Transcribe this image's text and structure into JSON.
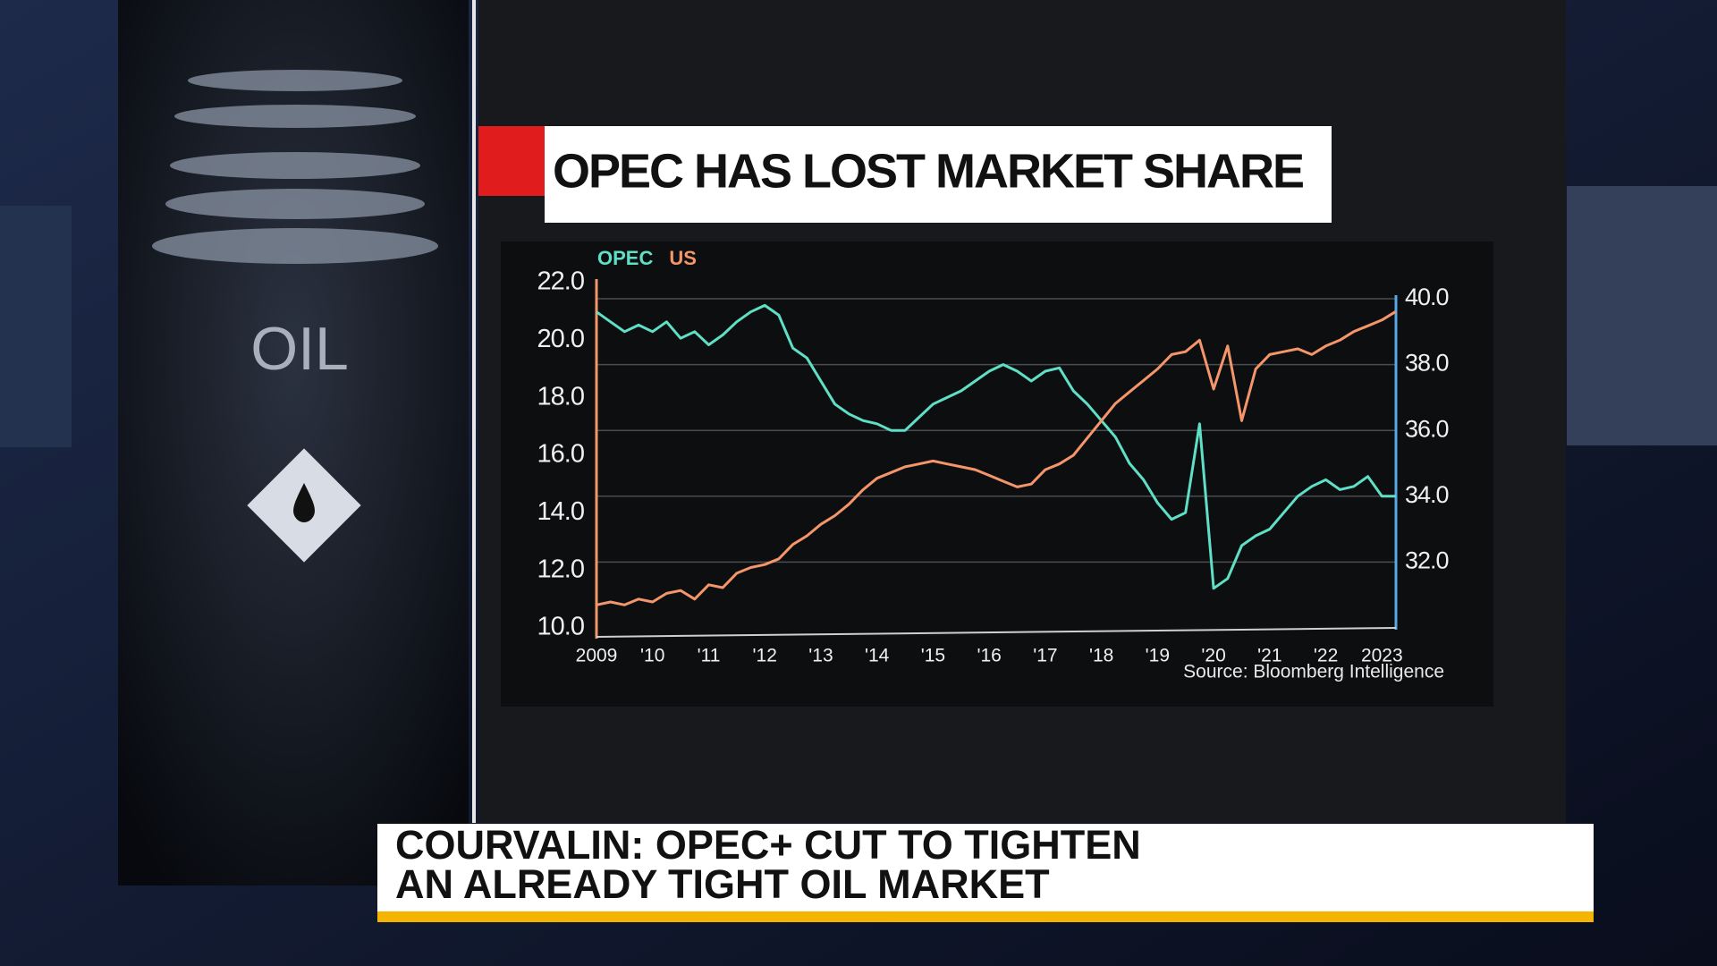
{
  "chart_data": {
    "type": "line",
    "title": "OPEC HAS LOST MARKET SHARE",
    "source": "Source: Bloomberg Intelligence",
    "x": [
      2009,
      2009.25,
      2009.5,
      2009.75,
      2010,
      2010.25,
      2010.5,
      2010.75,
      2011,
      2011.25,
      2011.5,
      2011.75,
      2012,
      2012.25,
      2012.5,
      2012.75,
      2013,
      2013.25,
      2013.5,
      2013.75,
      2014,
      2014.25,
      2014.5,
      2014.75,
      2015,
      2015.25,
      2015.5,
      2015.75,
      2016,
      2016.25,
      2016.5,
      2016.75,
      2017,
      2017.25,
      2017.5,
      2017.75,
      2018,
      2018.25,
      2018.5,
      2018.75,
      2019,
      2019.25,
      2019.5,
      2019.75,
      2020,
      2020.25,
      2020.5,
      2020.75,
      2021,
      2021.25,
      2021.5,
      2021.75,
      2022,
      2022.25,
      2022.5,
      2022.75,
      2023,
      2023.25
    ],
    "series": [
      {
        "name": "OPEC",
        "color": "#5fe0c6",
        "axis": "y2",
        "values": [
          39.6,
          39.3,
          39.0,
          39.2,
          39.0,
          39.3,
          38.8,
          39.0,
          38.6,
          38.9,
          39.3,
          39.6,
          39.8,
          39.5,
          38.5,
          38.2,
          37.5,
          36.8,
          36.5,
          36.3,
          36.2,
          36.0,
          36.0,
          36.4,
          36.8,
          37.0,
          37.2,
          37.5,
          37.8,
          38.0,
          37.8,
          37.5,
          37.8,
          37.9,
          37.2,
          36.8,
          36.3,
          35.8,
          35.0,
          34.5,
          33.8,
          33.3,
          33.5,
          36.2,
          31.2,
          31.5,
          32.5,
          32.8,
          33.0,
          33.5,
          34.0,
          34.3,
          34.5,
          34.2,
          34.3,
          34.6,
          34.0,
          34.0
        ]
      },
      {
        "name": "US",
        "color": "#f4956a",
        "axis": "y",
        "values": [
          10.8,
          10.9,
          10.8,
          11.0,
          10.9,
          11.2,
          11.3,
          11.0,
          11.5,
          11.4,
          11.9,
          12.1,
          12.2,
          12.4,
          12.9,
          13.2,
          13.6,
          13.9,
          14.3,
          14.8,
          15.2,
          15.4,
          15.6,
          15.7,
          15.8,
          15.7,
          15.6,
          15.5,
          15.3,
          15.1,
          14.9,
          15.0,
          15.5,
          15.7,
          16.0,
          16.6,
          17.2,
          17.8,
          18.2,
          18.6,
          19.0,
          19.5,
          19.6,
          20.0,
          18.3,
          19.8,
          17.2,
          19.0,
          19.5,
          19.6,
          19.7,
          19.5,
          19.8,
          20.0,
          20.3,
          20.5,
          20.7,
          21.0
        ]
      }
    ],
    "xlim": [
      2009,
      2023.25
    ],
    "xticks": [
      2009,
      {
        "value": 2010,
        "label": "'10"
      },
      {
        "value": 2011,
        "label": "'11"
      },
      {
        "value": 2012,
        "label": "'12"
      },
      {
        "value": 2013,
        "label": "'13"
      },
      {
        "value": 2014,
        "label": "'14"
      },
      {
        "value": 2015,
        "label": "'15"
      },
      {
        "value": 2016,
        "label": "'16"
      },
      {
        "value": 2017,
        "label": "'17"
      },
      {
        "value": 2018,
        "label": "'18"
      },
      {
        "value": 2019,
        "label": "'19"
      },
      {
        "value": 2020,
        "label": "'20"
      },
      {
        "value": 2021,
        "label": "'21"
      },
      {
        "value": 2022,
        "label": "'22"
      },
      2023
    ],
    "ylim": [
      10,
      22
    ],
    "yticks": [
      {
        "value": 10,
        "label": "10.0"
      },
      {
        "value": 12,
        "label": "12.0"
      },
      {
        "value": 14,
        "label": "14.0"
      },
      {
        "value": 16,
        "label": "16.0"
      },
      {
        "value": 18,
        "label": "18.0"
      },
      {
        "value": 20,
        "label": "20.0"
      },
      {
        "value": 22,
        "label": "22.0"
      }
    ],
    "y2lim": [
      30,
      40
    ],
    "y2ticks": [
      {
        "value": 32,
        "label": "32.0"
      },
      {
        "value": 34,
        "label": "34.0"
      },
      {
        "value": 36,
        "label": "36.0"
      },
      {
        "value": 38,
        "label": "38.0"
      },
      {
        "value": 40,
        "label": "40.0"
      }
    ],
    "grid": true
  },
  "logo_text": "OIL",
  "headline": [
    "COURVALIN: OPEC+ CUT TO TIGHTEN",
    "AN ALREADY TIGHT OIL MARKET"
  ]
}
